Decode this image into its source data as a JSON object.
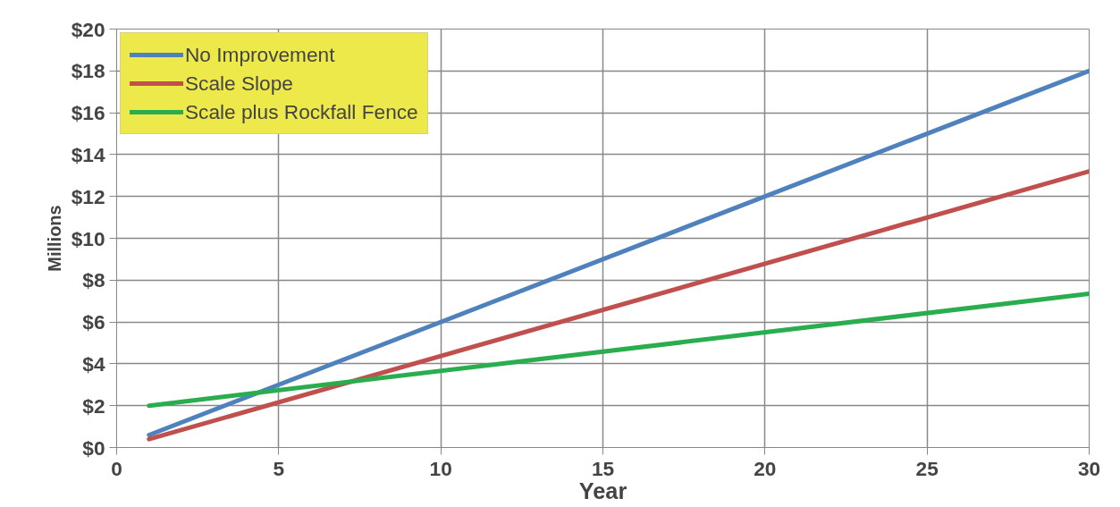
{
  "chart_data": {
    "type": "line",
    "xlabel": "Year",
    "ylabel": "Millions",
    "x": [
      1,
      30
    ],
    "series": [
      {
        "name": "No Improvement",
        "color": "#4f81bd",
        "values": [
          0.6,
          18.0
        ]
      },
      {
        "name": "Scale Slope",
        "color": "#c0504d",
        "values": [
          0.4,
          13.2
        ]
      },
      {
        "name": "Scale plus Rockfall Fence",
        "color": "#2aad4f",
        "values": [
          2.0,
          7.35
        ]
      }
    ],
    "xlim": [
      0,
      30
    ],
    "xticks": [
      0,
      5,
      10,
      15,
      20,
      25,
      30
    ],
    "ylim": [
      0,
      20
    ],
    "yticks": [
      {
        "value": 0,
        "label": "$0"
      },
      {
        "value": 2,
        "label": "$2"
      },
      {
        "value": 4,
        "label": "$4"
      },
      {
        "value": 6,
        "label": "$6"
      },
      {
        "value": 8,
        "label": "$8"
      },
      {
        "value": 10,
        "label": "$10"
      },
      {
        "value": 12,
        "label": "$12"
      },
      {
        "value": 14,
        "label": "$14"
      },
      {
        "value": 16,
        "label": "$16"
      },
      {
        "value": 18,
        "label": "$18"
      },
      {
        "value": 20,
        "label": "$20"
      }
    ],
    "grid": true,
    "legend": "top left",
    "marker": "none",
    "line_style": "solid"
  }
}
